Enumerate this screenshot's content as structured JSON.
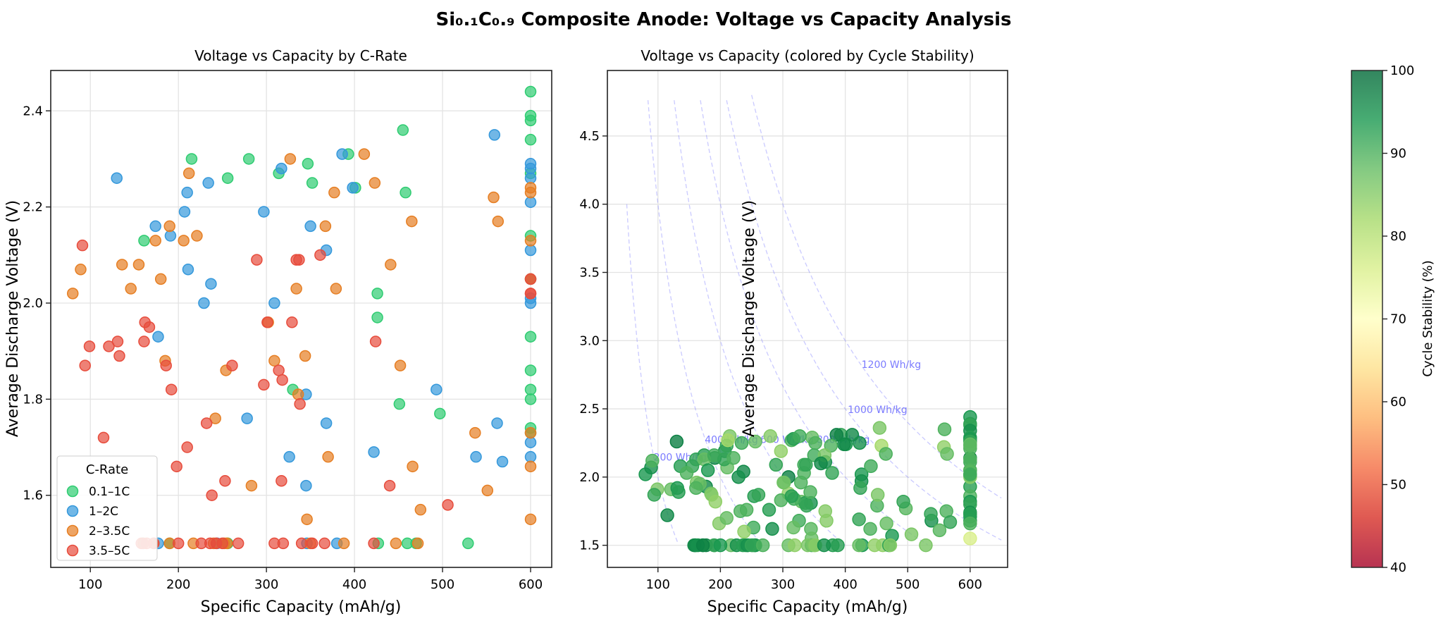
{
  "figure": {
    "title": "Si₀.₁C₀.₉ Composite Anode: Voltage vs Capacity Analysis"
  },
  "chart_data": [
    {
      "type": "scatter",
      "title": "Voltage vs Capacity by C-Rate",
      "xlabel": "Specific Capacity (mAh/g)",
      "ylabel": "Average Discharge Voltage (V)",
      "xlim": [
        55,
        624
      ],
      "ylim": [
        1.45,
        2.484
      ],
      "xticks": [
        100,
        200,
        300,
        400,
        500,
        600
      ],
      "yticks": [
        1.6,
        1.8,
        2.0,
        2.2,
        2.4
      ],
      "grid": true,
      "legend": {
        "title": "C-Rate",
        "placement": "lower-left"
      },
      "series": [
        {
          "name": "0.1–1C",
          "color": "#2ecc71",
          "points": [
            [
              161,
              2.13,
              92
            ],
            [
              215,
              2.3,
              86
            ],
            [
              256,
              2.26,
              88
            ],
            [
              280,
              2.3,
              85
            ],
            [
              314,
              2.27,
              90
            ],
            [
              347,
              2.29,
              88
            ],
            [
              352,
              2.25,
              90
            ],
            [
              393,
              2.31,
              92
            ],
            [
              401,
              2.24,
              94
            ],
            [
              455,
              2.36,
              86
            ],
            [
              458,
              2.23,
              82
            ],
            [
              426,
              2.02,
              94
            ],
            [
              426,
              1.97,
              95
            ],
            [
              330,
              1.82,
              88
            ],
            [
              451,
              1.79,
              90
            ],
            [
              497,
              1.77,
              89
            ],
            [
              529,
              1.5,
              86
            ],
            [
              427,
              1.5,
              94
            ],
            [
              460,
              1.5,
              84
            ],
            [
              470,
              1.5,
              92
            ],
            [
              190,
              1.5,
              96
            ],
            [
              256,
              1.5,
              93
            ],
            [
              600,
              2.44,
              94
            ],
            [
              600,
              2.39,
              93
            ],
            [
              600,
              2.38,
              92
            ],
            [
              600,
              2.34,
              95
            ],
            [
              600,
              2.27,
              94
            ],
            [
              600,
              2.14,
              97
            ],
            [
              600,
              2.05,
              88
            ],
            [
              600,
              1.93,
              93
            ],
            [
              600,
              1.86,
              90
            ],
            [
              600,
              1.82,
              94
            ],
            [
              600,
              1.8,
              92
            ],
            [
              600,
              1.74,
              95
            ],
            [
              600,
              1.73,
              93
            ]
          ]
        },
        {
          "name": "1–2C",
          "color": "#3498db",
          "points": [
            [
              130,
              2.26,
              97
            ],
            [
              207,
              2.19,
              95
            ],
            [
              210,
              2.23,
              92
            ],
            [
              234,
              2.25,
              91
            ],
            [
              317,
              2.28,
              93
            ],
            [
              297,
              2.19,
              84
            ],
            [
              386,
              2.31,
              97
            ],
            [
              398,
              2.24,
              96
            ],
            [
              559,
              2.35,
              90
            ],
            [
              600,
              2.29,
              93
            ],
            [
              600,
              2.28,
              94
            ],
            [
              600,
              2.26,
              92
            ],
            [
              600,
              2.21,
              90
            ],
            [
              600,
              2.11,
              91
            ],
            [
              600,
              2.01,
              92
            ],
            [
              600,
              2.0,
              85
            ],
            [
              600,
              1.71,
              94
            ],
            [
              600,
              1.68,
              93
            ],
            [
              174,
              2.16,
              93
            ],
            [
              191,
              2.14,
              96
            ],
            [
              211,
              2.07,
              88
            ],
            [
              237,
              2.04,
              96
            ],
            [
              229,
              2.0,
              95
            ],
            [
              309,
              2.0,
              97
            ],
            [
              350,
              2.16,
              91
            ],
            [
              368,
              2.11,
              95
            ],
            [
              177,
              1.93,
              96
            ],
            [
              278,
              1.76,
              93
            ],
            [
              345,
              1.81,
              95
            ],
            [
              368,
              1.75,
              85
            ],
            [
              493,
              1.82,
              92
            ],
            [
              562,
              1.75,
              90
            ],
            [
              538,
              1.68,
              95
            ],
            [
              568,
              1.67,
              92
            ],
            [
              422,
              1.69,
              92
            ],
            [
              326,
              1.68,
              91
            ],
            [
              345,
              1.62,
              89
            ],
            [
              380,
              1.5,
              93
            ],
            [
              160,
              1.5,
              95
            ],
            [
              177,
              1.5,
              97
            ],
            [
              244,
              1.5,
              94
            ],
            [
              346,
              1.5,
              92
            ]
          ]
        },
        {
          "name": "2–3.5C",
          "color": "#e67e22",
          "points": [
            [
              80,
              2.02,
              94
            ],
            [
              89,
              2.07,
              95
            ],
            [
              136,
              2.08,
              93
            ],
            [
              155,
              2.08,
              92
            ],
            [
              146,
              2.03,
              90
            ],
            [
              174,
              2.13,
              88
            ],
            [
              180,
              2.05,
              94
            ],
            [
              190,
              2.16,
              91
            ],
            [
              206,
              2.13,
              92
            ],
            [
              212,
              2.27,
              82
            ],
            [
              221,
              2.14,
              90
            ],
            [
              327,
              2.3,
              91
            ],
            [
              411,
              2.31,
              96
            ],
            [
              423,
              2.25,
              95
            ],
            [
              377,
              2.23,
              90
            ],
            [
              367,
              2.16,
              86
            ],
            [
              600,
              2.24,
              88
            ],
            [
              600,
              2.23,
              89
            ],
            [
              600,
              2.13,
              90
            ],
            [
              600,
              2.05,
              85
            ],
            [
              600,
              1.73,
              93
            ],
            [
              600,
              1.66,
              90
            ],
            [
              600,
              1.55,
              76
            ],
            [
              558,
              2.22,
              84
            ],
            [
              563,
              2.17,
              88
            ],
            [
              465,
              2.17,
              90
            ],
            [
              441,
              2.08,
              91
            ],
            [
              379,
              2.03,
              92
            ],
            [
              334,
              2.03,
              90
            ],
            [
              302,
              1.96,
              88
            ],
            [
              309,
              1.88,
              84
            ],
            [
              336,
              1.81,
              93
            ],
            [
              344,
              1.89,
              90
            ],
            [
              452,
              1.87,
              86
            ],
            [
              254,
              1.86,
              93
            ],
            [
              242,
              1.76,
              90
            ],
            [
              185,
              1.88,
              87
            ],
            [
              370,
              1.68,
              85
            ],
            [
              466,
              1.66,
              88
            ],
            [
              537,
              1.73,
              92
            ],
            [
              551,
              1.61,
              89
            ],
            [
              283,
              1.62,
              95
            ],
            [
              346,
              1.55,
              88
            ],
            [
              475,
              1.57,
              94
            ],
            [
              388,
              1.5,
              93
            ],
            [
              447,
              1.5,
              84
            ],
            [
              472,
              1.5,
              85
            ],
            [
              160,
              1.5,
              94
            ],
            [
              172,
              1.5,
              91
            ],
            [
              190,
              1.5,
              92
            ],
            [
              217,
              1.5,
              88
            ],
            [
              240,
              1.5,
              90
            ],
            [
              252,
              1.5,
              92
            ],
            [
              255,
              1.5,
              94
            ],
            [
              350,
              1.5,
              86
            ]
          ]
        },
        {
          "name": "3.5–5C",
          "color": "#e74c3c",
          "points": [
            [
              91,
              2.12,
              90
            ],
            [
              99,
              1.91,
              86
            ],
            [
              94,
              1.87,
              92
            ],
            [
              121,
              1.91,
              88
            ],
            [
              131,
              1.92,
              94
            ],
            [
              133,
              1.89,
              93
            ],
            [
              162,
              1.96,
              86
            ],
            [
              167,
              1.95,
              88
            ],
            [
              161,
              1.92,
              90
            ],
            [
              186,
              1.87,
              85
            ],
            [
              192,
              1.82,
              84
            ],
            [
              115,
              1.72,
              96
            ],
            [
              198,
              1.66,
              85
            ],
            [
              210,
              1.7,
              88
            ],
            [
              232,
              1.75,
              90
            ],
            [
              289,
              2.09,
              92
            ],
            [
              301,
              1.96,
              87
            ],
            [
              329,
              1.96,
              90
            ],
            [
              334,
              2.09,
              91
            ],
            [
              337,
              2.09,
              92
            ],
            [
              361,
              2.1,
              96
            ],
            [
              297,
              1.83,
              90
            ],
            [
              318,
              1.84,
              91
            ],
            [
              314,
              1.86,
              93
            ],
            [
              261,
              1.87,
              92
            ],
            [
              338,
              1.79,
              92
            ],
            [
              424,
              1.92,
              92
            ],
            [
              253,
              1.63,
              91
            ],
            [
              238,
              1.6,
              84
            ],
            [
              317,
              1.63,
              88
            ],
            [
              440,
              1.62,
              90
            ],
            [
              506,
              1.58,
              86
            ],
            [
              158,
              1.5,
              96
            ],
            [
              164,
              1.5,
              95
            ],
            [
              172,
              1.5,
              97
            ],
            [
              200,
              1.5,
              94
            ],
            [
              226,
              1.5,
              95
            ],
            [
              236,
              1.5,
              93
            ],
            [
              243,
              1.5,
              95
            ],
            [
              250,
              1.5,
              92
            ],
            [
              268,
              1.5,
              90
            ],
            [
              309,
              1.5,
              88
            ],
            [
              319,
              1.5,
              84
            ],
            [
              340,
              1.5,
              86
            ],
            [
              352,
              1.5,
              85
            ],
            [
              366,
              1.5,
              95
            ],
            [
              422,
              1.5,
              88
            ],
            [
              600,
              2.05,
              90
            ],
            [
              600,
              2.02,
              92
            ],
            [
              600,
              2.02,
              91
            ]
          ]
        }
      ]
    },
    {
      "type": "scatter",
      "title": "Voltage vs Capacity (colored by Cycle Stability)",
      "xlabel": "Specific Capacity (mAh/g)",
      "ylabel": "Average Discharge Voltage (V)",
      "xlim": [
        19,
        660
      ],
      "ylim": [
        1.338,
        4.98
      ],
      "xticks": [
        100,
        200,
        300,
        400,
        500,
        600
      ],
      "yticks": [
        1.5,
        2.0,
        2.5,
        3.0,
        3.5,
        4.0,
        4.5
      ],
      "grid": true,
      "color_source": "same points as left panel, colored by cycle stability",
      "colorbar": {
        "label": "Cycle Stability (%)",
        "range": [
          40,
          100
        ],
        "ticks": [
          40,
          50,
          60,
          70,
          80,
          90,
          100
        ],
        "colormap": "RdYlGn"
      },
      "energy_lines": [
        {
          "energy": 200,
          "label": "200 Wh/kg",
          "label_at": [
            93,
            2.12
          ]
        },
        {
          "energy": 400,
          "label": "400 Wh/kg",
          "label_at": [
            175,
            2.25
          ]
        },
        {
          "energy": 600,
          "label": "600 Wh/kg",
          "label_at": [
            264,
            2.25
          ]
        },
        {
          "energy": 800,
          "label": "800 Wh/kg",
          "label_at": [
            354,
            2.25
          ]
        },
        {
          "energy": 1000,
          "label": "1000 Wh/kg",
          "label_at": [
            404,
            2.47
          ]
        },
        {
          "energy": 1200,
          "label": "1200 Wh/kg",
          "label_at": [
            426,
            2.8
          ]
        }
      ],
      "energy_line_color": "#7b7bff"
    }
  ]
}
